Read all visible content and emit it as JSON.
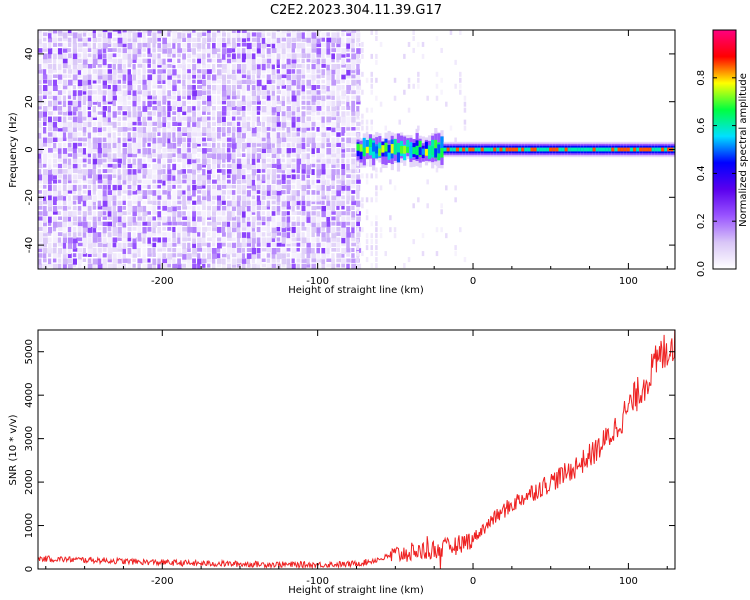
{
  "title": "C2E2.2023.304.11.39.G17",
  "colors": {
    "snr_line": "#ee2222",
    "colormap_stops": [
      "#ffffff",
      "#d9c6f7",
      "#9a55ff",
      "#5a00ee",
      "#0000ff",
      "#00e0ff",
      "#00ff40",
      "#ffff00",
      "#ff0000",
      "#ff0080"
    ]
  },
  "chart_data": [
    {
      "type": "heatmap",
      "name": "spectrogram",
      "xlabel": "Height of straight line (km)",
      "ylabel": "Frequency (Hz)",
      "xlim": [
        -280,
        130
      ],
      "ylim": [
        -50,
        50
      ],
      "xticks": [
        -200,
        -100,
        0,
        100
      ],
      "xtick_labels": [
        "-200",
        "-100",
        "0",
        "100"
      ],
      "yticks": [
        -40,
        -20,
        0,
        20,
        40
      ],
      "ytick_labels": [
        "-40",
        "-20",
        "0",
        "20",
        "40"
      ],
      "noise_region_x": [
        -280,
        -75
      ],
      "transition_region_x": [
        -75,
        -25
      ],
      "signal_band_hz": 0,
      "colorbar": {
        "label": "Normalized spectral amplitude",
        "range": [
          0,
          1
        ],
        "ticks": [
          0.0,
          0.2,
          0.4,
          0.6,
          0.8
        ],
        "tick_labels": [
          "0.0",
          "0.2",
          "0.4",
          "0.6",
          "0.8"
        ]
      }
    },
    {
      "type": "line",
      "name": "snr",
      "xlabel": "Height of straight line (km)",
      "ylabel": "SNR (10 * v/v)",
      "xlim": [
        -280,
        130
      ],
      "ylim": [
        0,
        5500
      ],
      "xticks": [
        -200,
        -100,
        0,
        100
      ],
      "xtick_labels": [
        "-200",
        "-100",
        "0",
        "100"
      ],
      "yticks": [
        0,
        1000,
        2000,
        3000,
        4000,
        5000
      ],
      "ytick_labels": [
        "0",
        "1000",
        "2000",
        "3000",
        "4000",
        "5000"
      ],
      "series": [
        {
          "x": [
            -280,
            -260,
            -240,
            -220,
            -200,
            -180,
            -160,
            -140,
            -120,
            -100,
            -80,
            -70,
            -60,
            -50,
            -40,
            -30,
            -20,
            -10,
            0,
            10,
            20,
            30,
            40,
            50,
            60,
            70,
            80,
            90,
            100,
            110,
            120,
            130
          ],
          "values": [
            240,
            220,
            200,
            170,
            150,
            130,
            120,
            110,
            100,
            100,
            110,
            150,
            230,
            330,
            380,
            430,
            470,
            550,
            700,
            1050,
            1350,
            1600,
            1800,
            2000,
            2200,
            2450,
            2750,
            3150,
            3700,
            4250,
            4850,
            5300
          ]
        }
      ]
    }
  ]
}
